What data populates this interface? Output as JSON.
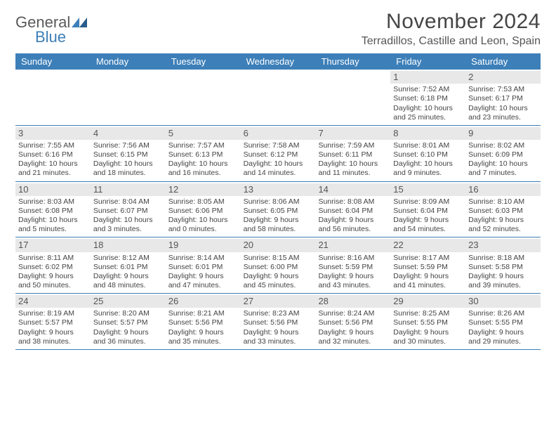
{
  "brand": {
    "name_part1": "General",
    "name_part2": "Blue"
  },
  "title": "November 2024",
  "location": "Terradillos, Castille and Leon, Spain",
  "colors": {
    "header_bg": "#3d7fb8",
    "daynum_bg": "#e8e8e8",
    "text": "#444444",
    "title_text": "#454545",
    "border": "#3d7fb8",
    "page_bg": "#ffffff"
  },
  "day_names": [
    "Sunday",
    "Monday",
    "Tuesday",
    "Wednesday",
    "Thursday",
    "Friday",
    "Saturday"
  ],
  "weeks": [
    [
      null,
      null,
      null,
      null,
      null,
      {
        "n": "1",
        "sr": "Sunrise: 7:52 AM",
        "ss": "Sunset: 6:18 PM",
        "dl1": "Daylight: 10 hours",
        "dl2": "and 25 minutes."
      },
      {
        "n": "2",
        "sr": "Sunrise: 7:53 AM",
        "ss": "Sunset: 6:17 PM",
        "dl1": "Daylight: 10 hours",
        "dl2": "and 23 minutes."
      }
    ],
    [
      {
        "n": "3",
        "sr": "Sunrise: 7:55 AM",
        "ss": "Sunset: 6:16 PM",
        "dl1": "Daylight: 10 hours",
        "dl2": "and 21 minutes."
      },
      {
        "n": "4",
        "sr": "Sunrise: 7:56 AM",
        "ss": "Sunset: 6:15 PM",
        "dl1": "Daylight: 10 hours",
        "dl2": "and 18 minutes."
      },
      {
        "n": "5",
        "sr": "Sunrise: 7:57 AM",
        "ss": "Sunset: 6:13 PM",
        "dl1": "Daylight: 10 hours",
        "dl2": "and 16 minutes."
      },
      {
        "n": "6",
        "sr": "Sunrise: 7:58 AM",
        "ss": "Sunset: 6:12 PM",
        "dl1": "Daylight: 10 hours",
        "dl2": "and 14 minutes."
      },
      {
        "n": "7",
        "sr": "Sunrise: 7:59 AM",
        "ss": "Sunset: 6:11 PM",
        "dl1": "Daylight: 10 hours",
        "dl2": "and 11 minutes."
      },
      {
        "n": "8",
        "sr": "Sunrise: 8:01 AM",
        "ss": "Sunset: 6:10 PM",
        "dl1": "Daylight: 10 hours",
        "dl2": "and 9 minutes."
      },
      {
        "n": "9",
        "sr": "Sunrise: 8:02 AM",
        "ss": "Sunset: 6:09 PM",
        "dl1": "Daylight: 10 hours",
        "dl2": "and 7 minutes."
      }
    ],
    [
      {
        "n": "10",
        "sr": "Sunrise: 8:03 AM",
        "ss": "Sunset: 6:08 PM",
        "dl1": "Daylight: 10 hours",
        "dl2": "and 5 minutes."
      },
      {
        "n": "11",
        "sr": "Sunrise: 8:04 AM",
        "ss": "Sunset: 6:07 PM",
        "dl1": "Daylight: 10 hours",
        "dl2": "and 3 minutes."
      },
      {
        "n": "12",
        "sr": "Sunrise: 8:05 AM",
        "ss": "Sunset: 6:06 PM",
        "dl1": "Daylight: 10 hours",
        "dl2": "and 0 minutes."
      },
      {
        "n": "13",
        "sr": "Sunrise: 8:06 AM",
        "ss": "Sunset: 6:05 PM",
        "dl1": "Daylight: 9 hours",
        "dl2": "and 58 minutes."
      },
      {
        "n": "14",
        "sr": "Sunrise: 8:08 AM",
        "ss": "Sunset: 6:04 PM",
        "dl1": "Daylight: 9 hours",
        "dl2": "and 56 minutes."
      },
      {
        "n": "15",
        "sr": "Sunrise: 8:09 AM",
        "ss": "Sunset: 6:04 PM",
        "dl1": "Daylight: 9 hours",
        "dl2": "and 54 minutes."
      },
      {
        "n": "16",
        "sr": "Sunrise: 8:10 AM",
        "ss": "Sunset: 6:03 PM",
        "dl1": "Daylight: 9 hours",
        "dl2": "and 52 minutes."
      }
    ],
    [
      {
        "n": "17",
        "sr": "Sunrise: 8:11 AM",
        "ss": "Sunset: 6:02 PM",
        "dl1": "Daylight: 9 hours",
        "dl2": "and 50 minutes."
      },
      {
        "n": "18",
        "sr": "Sunrise: 8:12 AM",
        "ss": "Sunset: 6:01 PM",
        "dl1": "Daylight: 9 hours",
        "dl2": "and 48 minutes."
      },
      {
        "n": "19",
        "sr": "Sunrise: 8:14 AM",
        "ss": "Sunset: 6:01 PM",
        "dl1": "Daylight: 9 hours",
        "dl2": "and 47 minutes."
      },
      {
        "n": "20",
        "sr": "Sunrise: 8:15 AM",
        "ss": "Sunset: 6:00 PM",
        "dl1": "Daylight: 9 hours",
        "dl2": "and 45 minutes."
      },
      {
        "n": "21",
        "sr": "Sunrise: 8:16 AM",
        "ss": "Sunset: 5:59 PM",
        "dl1": "Daylight: 9 hours",
        "dl2": "and 43 minutes."
      },
      {
        "n": "22",
        "sr": "Sunrise: 8:17 AM",
        "ss": "Sunset: 5:59 PM",
        "dl1": "Daylight: 9 hours",
        "dl2": "and 41 minutes."
      },
      {
        "n": "23",
        "sr": "Sunrise: 8:18 AM",
        "ss": "Sunset: 5:58 PM",
        "dl1": "Daylight: 9 hours",
        "dl2": "and 39 minutes."
      }
    ],
    [
      {
        "n": "24",
        "sr": "Sunrise: 8:19 AM",
        "ss": "Sunset: 5:57 PM",
        "dl1": "Daylight: 9 hours",
        "dl2": "and 38 minutes."
      },
      {
        "n": "25",
        "sr": "Sunrise: 8:20 AM",
        "ss": "Sunset: 5:57 PM",
        "dl1": "Daylight: 9 hours",
        "dl2": "and 36 minutes."
      },
      {
        "n": "26",
        "sr": "Sunrise: 8:21 AM",
        "ss": "Sunset: 5:56 PM",
        "dl1": "Daylight: 9 hours",
        "dl2": "and 35 minutes."
      },
      {
        "n": "27",
        "sr": "Sunrise: 8:23 AM",
        "ss": "Sunset: 5:56 PM",
        "dl1": "Daylight: 9 hours",
        "dl2": "and 33 minutes."
      },
      {
        "n": "28",
        "sr": "Sunrise: 8:24 AM",
        "ss": "Sunset: 5:56 PM",
        "dl1": "Daylight: 9 hours",
        "dl2": "and 32 minutes."
      },
      {
        "n": "29",
        "sr": "Sunrise: 8:25 AM",
        "ss": "Sunset: 5:55 PM",
        "dl1": "Daylight: 9 hours",
        "dl2": "and 30 minutes."
      },
      {
        "n": "30",
        "sr": "Sunrise: 8:26 AM",
        "ss": "Sunset: 5:55 PM",
        "dl1": "Daylight: 9 hours",
        "dl2": "and 29 minutes."
      }
    ]
  ]
}
